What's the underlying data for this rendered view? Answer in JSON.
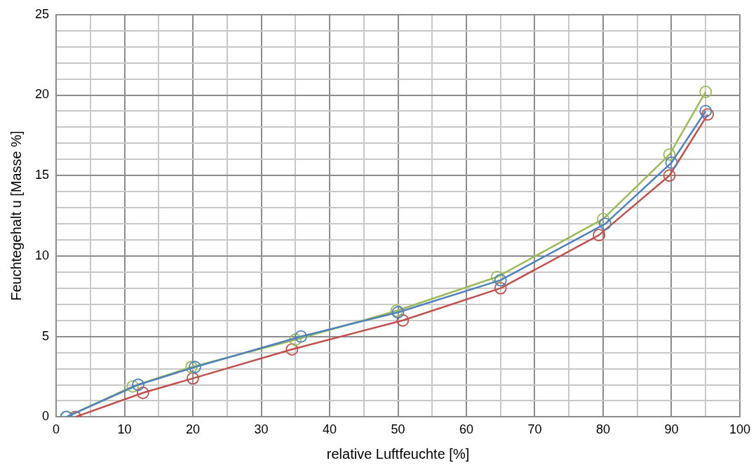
{
  "chart_data": {
    "type": "line",
    "xlabel": "relative Luftfeuchte [%]",
    "ylabel": "Feuchtegehalt u [Masse %]",
    "xlim": [
      0,
      100
    ],
    "ylim": [
      0,
      25
    ],
    "xticks": [
      0,
      {
        "value": 5,
        "label": null
      },
      10,
      {
        "value": 15,
        "label": null
      },
      20,
      {
        "value": 25,
        "label": null
      },
      30,
      {
        "value": 35,
        "label": null
      },
      40,
      {
        "value": 45,
        "label": null
      },
      50,
      {
        "value": 55,
        "label": null
      },
      60,
      {
        "value": 65,
        "label": null
      },
      70,
      {
        "value": 75,
        "label": null
      },
      80,
      {
        "value": 85,
        "label": null
      },
      90,
      {
        "value": 95,
        "label": null
      },
      100
    ],
    "yticks": [
      0,
      {
        "value": 1,
        "label": null
      },
      {
        "value": 2,
        "label": null
      },
      {
        "value": 3,
        "label": null
      },
      {
        "value": 4,
        "label": null
      },
      5,
      {
        "value": 6,
        "label": null
      },
      {
        "value": 7,
        "label": null
      },
      {
        "value": 8,
        "label": null
      },
      {
        "value": 9,
        "label": null
      },
      10,
      {
        "value": 11,
        "label": null
      },
      {
        "value": 12,
        "label": null
      },
      {
        "value": 13,
        "label": null
      },
      {
        "value": 14,
        "label": null
      },
      15,
      {
        "value": 16,
        "label": null
      },
      {
        "value": 17,
        "label": null
      },
      {
        "value": 18,
        "label": null
      },
      {
        "value": 19,
        "label": null
      },
      20,
      {
        "value": 21,
        "label": null
      },
      {
        "value": 22,
        "label": null
      },
      {
        "value": 23,
        "label": null
      },
      {
        "value": 24,
        "label": null
      },
      25
    ],
    "grid": true,
    "legend": false,
    "marker": "circle",
    "line_style": "solid",
    "series": [
      {
        "color": "#4f81bd",
        "x": [
          1.5,
          12.0,
          20.3,
          35.8,
          50.0,
          65.0,
          80.3,
          90.0,
          95.0
        ],
        "values": [
          0,
          2.0,
          3.1,
          5.0,
          6.5,
          8.5,
          12.0,
          15.8,
          19.0
        ]
      },
      {
        "color": "#9bbb59",
        "x": [
          1.5,
          11.2,
          19.8,
          35.0,
          49.8,
          64.5,
          80.0,
          89.7,
          95.0
        ],
        "values": [
          0,
          1.9,
          3.1,
          4.8,
          6.6,
          8.7,
          12.3,
          16.3,
          20.2
        ]
      },
      {
        "color": "#c0504d",
        "x": [
          2.8,
          12.7,
          20.0,
          34.5,
          50.7,
          65.0,
          79.4,
          89.7,
          95.3
        ],
        "values": [
          0,
          1.5,
          2.4,
          4.2,
          6.0,
          8.0,
          11.3,
          15.0,
          18.8
        ]
      }
    ]
  }
}
